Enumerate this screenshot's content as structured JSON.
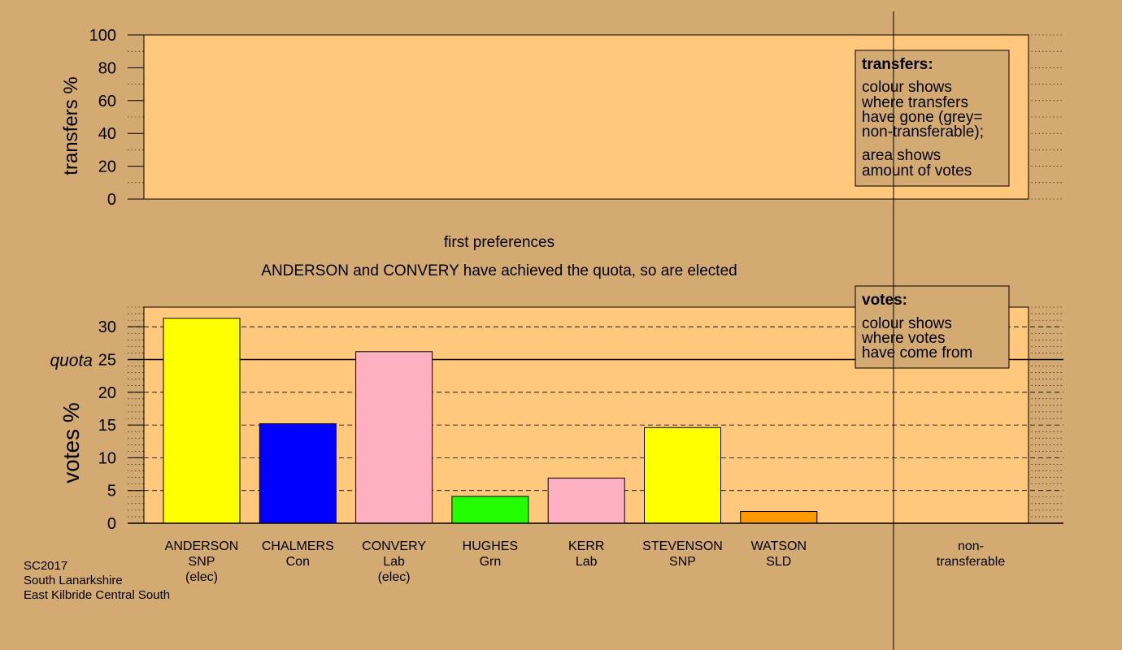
{
  "colors": {
    "background": "#d4aa73",
    "panel": "#ffc87d",
    "SNP": "#ffff00",
    "Con": "#0000ff",
    "Lab": "#ffb0c0",
    "Grn": "#22ff00",
    "SLD": "#ff9900"
  },
  "chart_data": [
    {
      "type": "bar",
      "name": "transfers",
      "ylabel": "transfers %",
      "ylim": [
        0,
        100
      ],
      "yticks": [
        0,
        20,
        40,
        60,
        80,
        100
      ],
      "values": [],
      "legend": {
        "title": "transfers:",
        "lines1": [
          "colour shows",
          "where transfers",
          "have gone (grey=",
          "non-transferable);"
        ],
        "lines2": [
          "area shows",
          "amount of votes"
        ],
        "placement": "top-right"
      }
    },
    {
      "type": "bar",
      "name": "votes",
      "title": "first preferences",
      "subtitle": "ANDERSON and CONVERY have achieved the quota, so are elected",
      "ylabel": "votes %",
      "ylim": [
        0,
        33
      ],
      "yticks": [
        0,
        5,
        10,
        15,
        20,
        25,
        30
      ],
      "quota": 25,
      "quota_label": "quota",
      "categories": [
        {
          "line1": "ANDERSON",
          "line2": "SNP",
          "line3": "(elec)"
        },
        {
          "line1": "CHALMERS",
          "line2": "Con",
          "line3": ""
        },
        {
          "line1": "CONVERY",
          "line2": "Lab",
          "line3": "(elec)"
        },
        {
          "line1": "HUGHES",
          "line2": "Grn",
          "line3": ""
        },
        {
          "line1": "KERR",
          "line2": "Lab",
          "line3": ""
        },
        {
          "line1": "STEVENSON",
          "line2": "SNP",
          "line3": ""
        },
        {
          "line1": "WATSON",
          "line2": "SLD",
          "line3": ""
        }
      ],
      "values": [
        31.3,
        15.2,
        26.2,
        4.1,
        6.9,
        14.6,
        1.8
      ],
      "bar_colors": [
        "#ffff00",
        "#0000ff",
        "#ffb0c0",
        "#22ff00",
        "#ffb0c0",
        "#ffff00",
        "#ff9900"
      ],
      "nontransferable_label": [
        "non-",
        "transferable"
      ],
      "legend": {
        "title": "votes:",
        "lines1": [
          "colour shows",
          "where votes",
          "have come from"
        ],
        "placement": "top-right"
      }
    }
  ],
  "footer": {
    "line1": "SC2017",
    "line2": "South Lanarkshire",
    "line3": "East Kilbride Central South"
  }
}
